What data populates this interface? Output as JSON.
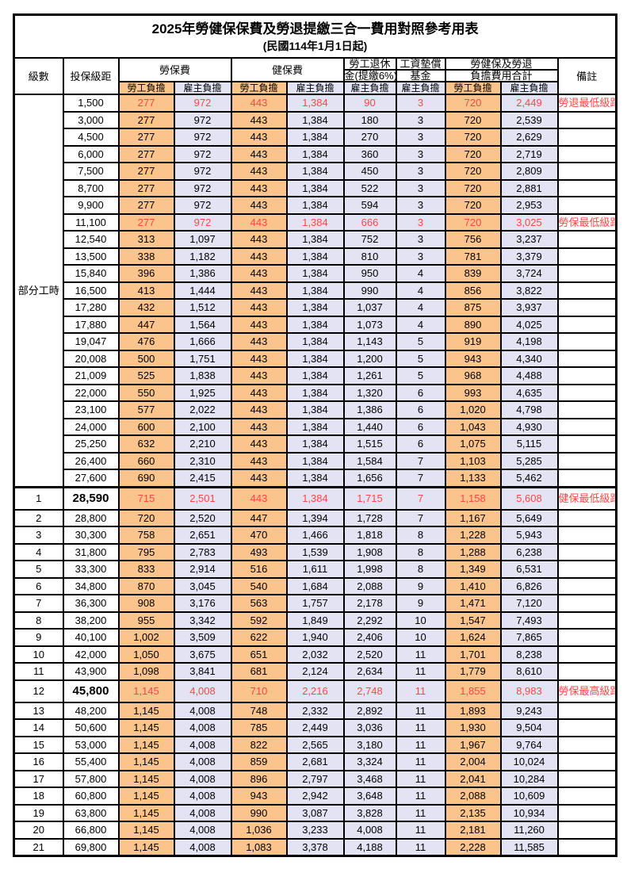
{
  "title": "2025年勞健保保費及勞退提繳三合一費用對照參考用表",
  "subtitle": "(民國114年1月1日起)",
  "header": {
    "level": "級數",
    "bracket": "投保級距",
    "labor_insurance": "勞保費",
    "health_insurance": "健保費",
    "pension_line1": "勞工退休",
    "pension_line2": "金(提繳6%)",
    "wage_fund_line1": "工資墊償",
    "wage_fund_line2": "基金",
    "total_line1": "勞健保及勞退",
    "total_line2": "負擔費用合計",
    "remark": "備註",
    "employee_label": "勞工負擔",
    "employer_label": "雇主負擔"
  },
  "colors": {
    "employee_bg": "#FAC48C",
    "employer_bg": "#E3E3F3",
    "highlight_text": "#FF4646",
    "border": "#000000"
  },
  "table": {
    "part_time_label": "部分工時",
    "part_time_rowspan": 23,
    "rows": [
      {
        "level": "",
        "bracket": "1,500",
        "values": [
          "277",
          "972",
          "443",
          "1,384",
          "90",
          "3",
          "720",
          "2,449"
        ],
        "remark": "勞退最低級距",
        "red": true
      },
      {
        "level": "",
        "bracket": "3,000",
        "values": [
          "277",
          "972",
          "443",
          "1,384",
          "180",
          "3",
          "720",
          "2,539"
        ],
        "remark": ""
      },
      {
        "level": "",
        "bracket": "4,500",
        "values": [
          "277",
          "972",
          "443",
          "1,384",
          "270",
          "3",
          "720",
          "2,629"
        ],
        "remark": ""
      },
      {
        "level": "",
        "bracket": "6,000",
        "values": [
          "277",
          "972",
          "443",
          "1,384",
          "360",
          "3",
          "720",
          "2,719"
        ],
        "remark": ""
      },
      {
        "level": "",
        "bracket": "7,500",
        "values": [
          "277",
          "972",
          "443",
          "1,384",
          "450",
          "3",
          "720",
          "2,809"
        ],
        "remark": ""
      },
      {
        "level": "",
        "bracket": "8,700",
        "values": [
          "277",
          "972",
          "443",
          "1,384",
          "522",
          "3",
          "720",
          "2,881"
        ],
        "remark": ""
      },
      {
        "level": "",
        "bracket": "9,900",
        "values": [
          "277",
          "972",
          "443",
          "1,384",
          "594",
          "3",
          "720",
          "2,953"
        ],
        "remark": ""
      },
      {
        "level": "",
        "bracket": "11,100",
        "values": [
          "277",
          "972",
          "443",
          "1,384",
          "666",
          "3",
          "720",
          "3,025"
        ],
        "remark": "勞保最低級距",
        "red": true
      },
      {
        "level": "",
        "bracket": "12,540",
        "values": [
          "313",
          "1,097",
          "443",
          "1,384",
          "752",
          "3",
          "756",
          "3,237"
        ],
        "remark": ""
      },
      {
        "level": "",
        "bracket": "13,500",
        "values": [
          "338",
          "1,182",
          "443",
          "1,384",
          "810",
          "3",
          "781",
          "3,379"
        ],
        "remark": ""
      },
      {
        "level": "",
        "bracket": "15,840",
        "values": [
          "396",
          "1,386",
          "443",
          "1,384",
          "950",
          "4",
          "839",
          "3,724"
        ],
        "remark": ""
      },
      {
        "level": "",
        "bracket": "16,500",
        "values": [
          "413",
          "1,444",
          "443",
          "1,384",
          "990",
          "4",
          "856",
          "3,822"
        ],
        "remark": ""
      },
      {
        "level": "",
        "bracket": "17,280",
        "values": [
          "432",
          "1,512",
          "443",
          "1,384",
          "1,037",
          "4",
          "875",
          "3,937"
        ],
        "remark": ""
      },
      {
        "level": "",
        "bracket": "17,880",
        "values": [
          "447",
          "1,564",
          "443",
          "1,384",
          "1,073",
          "4",
          "890",
          "4,025"
        ],
        "remark": ""
      },
      {
        "level": "",
        "bracket": "19,047",
        "values": [
          "476",
          "1,666",
          "443",
          "1,384",
          "1,143",
          "5",
          "919",
          "4,198"
        ],
        "remark": ""
      },
      {
        "level": "",
        "bracket": "20,008",
        "values": [
          "500",
          "1,751",
          "443",
          "1,384",
          "1,200",
          "5",
          "943",
          "4,340"
        ],
        "remark": ""
      },
      {
        "level": "",
        "bracket": "21,009",
        "values": [
          "525",
          "1,838",
          "443",
          "1,384",
          "1,261",
          "5",
          "968",
          "4,488"
        ],
        "remark": ""
      },
      {
        "level": "",
        "bracket": "22,000",
        "values": [
          "550",
          "1,925",
          "443",
          "1,384",
          "1,320",
          "6",
          "993",
          "4,635"
        ],
        "remark": ""
      },
      {
        "level": "",
        "bracket": "23,100",
        "values": [
          "577",
          "2,022",
          "443",
          "1,384",
          "1,386",
          "6",
          "1,020",
          "4,798"
        ],
        "remark": ""
      },
      {
        "level": "",
        "bracket": "24,000",
        "values": [
          "600",
          "2,100",
          "443",
          "1,384",
          "1,440",
          "6",
          "1,043",
          "4,930"
        ],
        "remark": ""
      },
      {
        "level": "",
        "bracket": "25,250",
        "values": [
          "632",
          "2,210",
          "443",
          "1,384",
          "1,515",
          "6",
          "1,075",
          "5,115"
        ],
        "remark": ""
      },
      {
        "level": "",
        "bracket": "26,400",
        "values": [
          "660",
          "2,310",
          "443",
          "1,384",
          "1,584",
          "7",
          "1,103",
          "5,285"
        ],
        "remark": ""
      },
      {
        "level": "",
        "bracket": "27,600",
        "values": [
          "690",
          "2,415",
          "443",
          "1,384",
          "1,656",
          "7",
          "1,133",
          "5,462"
        ],
        "remark": ""
      },
      {
        "level": "1",
        "bracket": "28,590",
        "values": [
          "715",
          "2,501",
          "443",
          "1,384",
          "1,715",
          "7",
          "1,158",
          "5,608"
        ],
        "remark": "健保最低級距",
        "red": true,
        "bold": true,
        "tall": true,
        "section": true
      },
      {
        "level": "2",
        "bracket": "28,800",
        "values": [
          "720",
          "2,520",
          "447",
          "1,394",
          "1,728",
          "7",
          "1,167",
          "5,649"
        ],
        "remark": ""
      },
      {
        "level": "3",
        "bracket": "30,300",
        "values": [
          "758",
          "2,651",
          "470",
          "1,466",
          "1,818",
          "8",
          "1,228",
          "5,943"
        ],
        "remark": ""
      },
      {
        "level": "4",
        "bracket": "31,800",
        "values": [
          "795",
          "2,783",
          "493",
          "1,539",
          "1,908",
          "8",
          "1,288",
          "6,238"
        ],
        "remark": ""
      },
      {
        "level": "5",
        "bracket": "33,300",
        "values": [
          "833",
          "2,914",
          "516",
          "1,611",
          "1,998",
          "8",
          "1,349",
          "6,531"
        ],
        "remark": ""
      },
      {
        "level": "6",
        "bracket": "34,800",
        "values": [
          "870",
          "3,045",
          "540",
          "1,684",
          "2,088",
          "9",
          "1,410",
          "6,826"
        ],
        "remark": ""
      },
      {
        "level": "7",
        "bracket": "36,300",
        "values": [
          "908",
          "3,176",
          "563",
          "1,757",
          "2,178",
          "9",
          "1,471",
          "7,120"
        ],
        "remark": ""
      },
      {
        "level": "8",
        "bracket": "38,200",
        "values": [
          "955",
          "3,342",
          "592",
          "1,849",
          "2,292",
          "10",
          "1,547",
          "7,493"
        ],
        "remark": ""
      },
      {
        "level": "9",
        "bracket": "40,100",
        "values": [
          "1,002",
          "3,509",
          "622",
          "1,940",
          "2,406",
          "10",
          "1,624",
          "7,865"
        ],
        "remark": ""
      },
      {
        "level": "10",
        "bracket": "42,000",
        "values": [
          "1,050",
          "3,675",
          "651",
          "2,032",
          "2,520",
          "11",
          "1,701",
          "8,238"
        ],
        "remark": ""
      },
      {
        "level": "11",
        "bracket": "43,900",
        "values": [
          "1,098",
          "3,841",
          "681",
          "2,124",
          "2,634",
          "11",
          "1,779",
          "8,610"
        ],
        "remark": ""
      },
      {
        "level": "12",
        "bracket": "45,800",
        "values": [
          "1,145",
          "4,008",
          "710",
          "2,216",
          "2,748",
          "11",
          "1,855",
          "8,983"
        ],
        "remark": "勞保最高級距",
        "red": true,
        "bold": true,
        "tall": true
      },
      {
        "level": "13",
        "bracket": "48,200",
        "values": [
          "1,145",
          "4,008",
          "748",
          "2,332",
          "2,892",
          "11",
          "1,893",
          "9,243"
        ],
        "remark": ""
      },
      {
        "level": "14",
        "bracket": "50,600",
        "values": [
          "1,145",
          "4,008",
          "785",
          "2,449",
          "3,036",
          "11",
          "1,930",
          "9,504"
        ],
        "remark": ""
      },
      {
        "level": "15",
        "bracket": "53,000",
        "values": [
          "1,145",
          "4,008",
          "822",
          "2,565",
          "3,180",
          "11",
          "1,967",
          "9,764"
        ],
        "remark": ""
      },
      {
        "level": "16",
        "bracket": "55,400",
        "values": [
          "1,145",
          "4,008",
          "859",
          "2,681",
          "3,324",
          "11",
          "2,004",
          "10,024"
        ],
        "remark": ""
      },
      {
        "level": "17",
        "bracket": "57,800",
        "values": [
          "1,145",
          "4,008",
          "896",
          "2,797",
          "3,468",
          "11",
          "2,041",
          "10,284"
        ],
        "remark": ""
      },
      {
        "level": "18",
        "bracket": "60,800",
        "values": [
          "1,145",
          "4,008",
          "943",
          "2,942",
          "3,648",
          "11",
          "2,088",
          "10,609"
        ],
        "remark": ""
      },
      {
        "level": "19",
        "bracket": "63,800",
        "values": [
          "1,145",
          "4,008",
          "990",
          "3,087",
          "3,828",
          "11",
          "2,135",
          "10,934"
        ],
        "remark": ""
      },
      {
        "level": "20",
        "bracket": "66,800",
        "values": [
          "1,145",
          "4,008",
          "1,036",
          "3,233",
          "4,008",
          "11",
          "2,181",
          "11,260"
        ],
        "remark": ""
      },
      {
        "level": "21",
        "bracket": "69,800",
        "values": [
          "1,145",
          "4,008",
          "1,083",
          "3,378",
          "4,188",
          "11",
          "2,228",
          "11,585"
        ],
        "remark": ""
      }
    ]
  }
}
